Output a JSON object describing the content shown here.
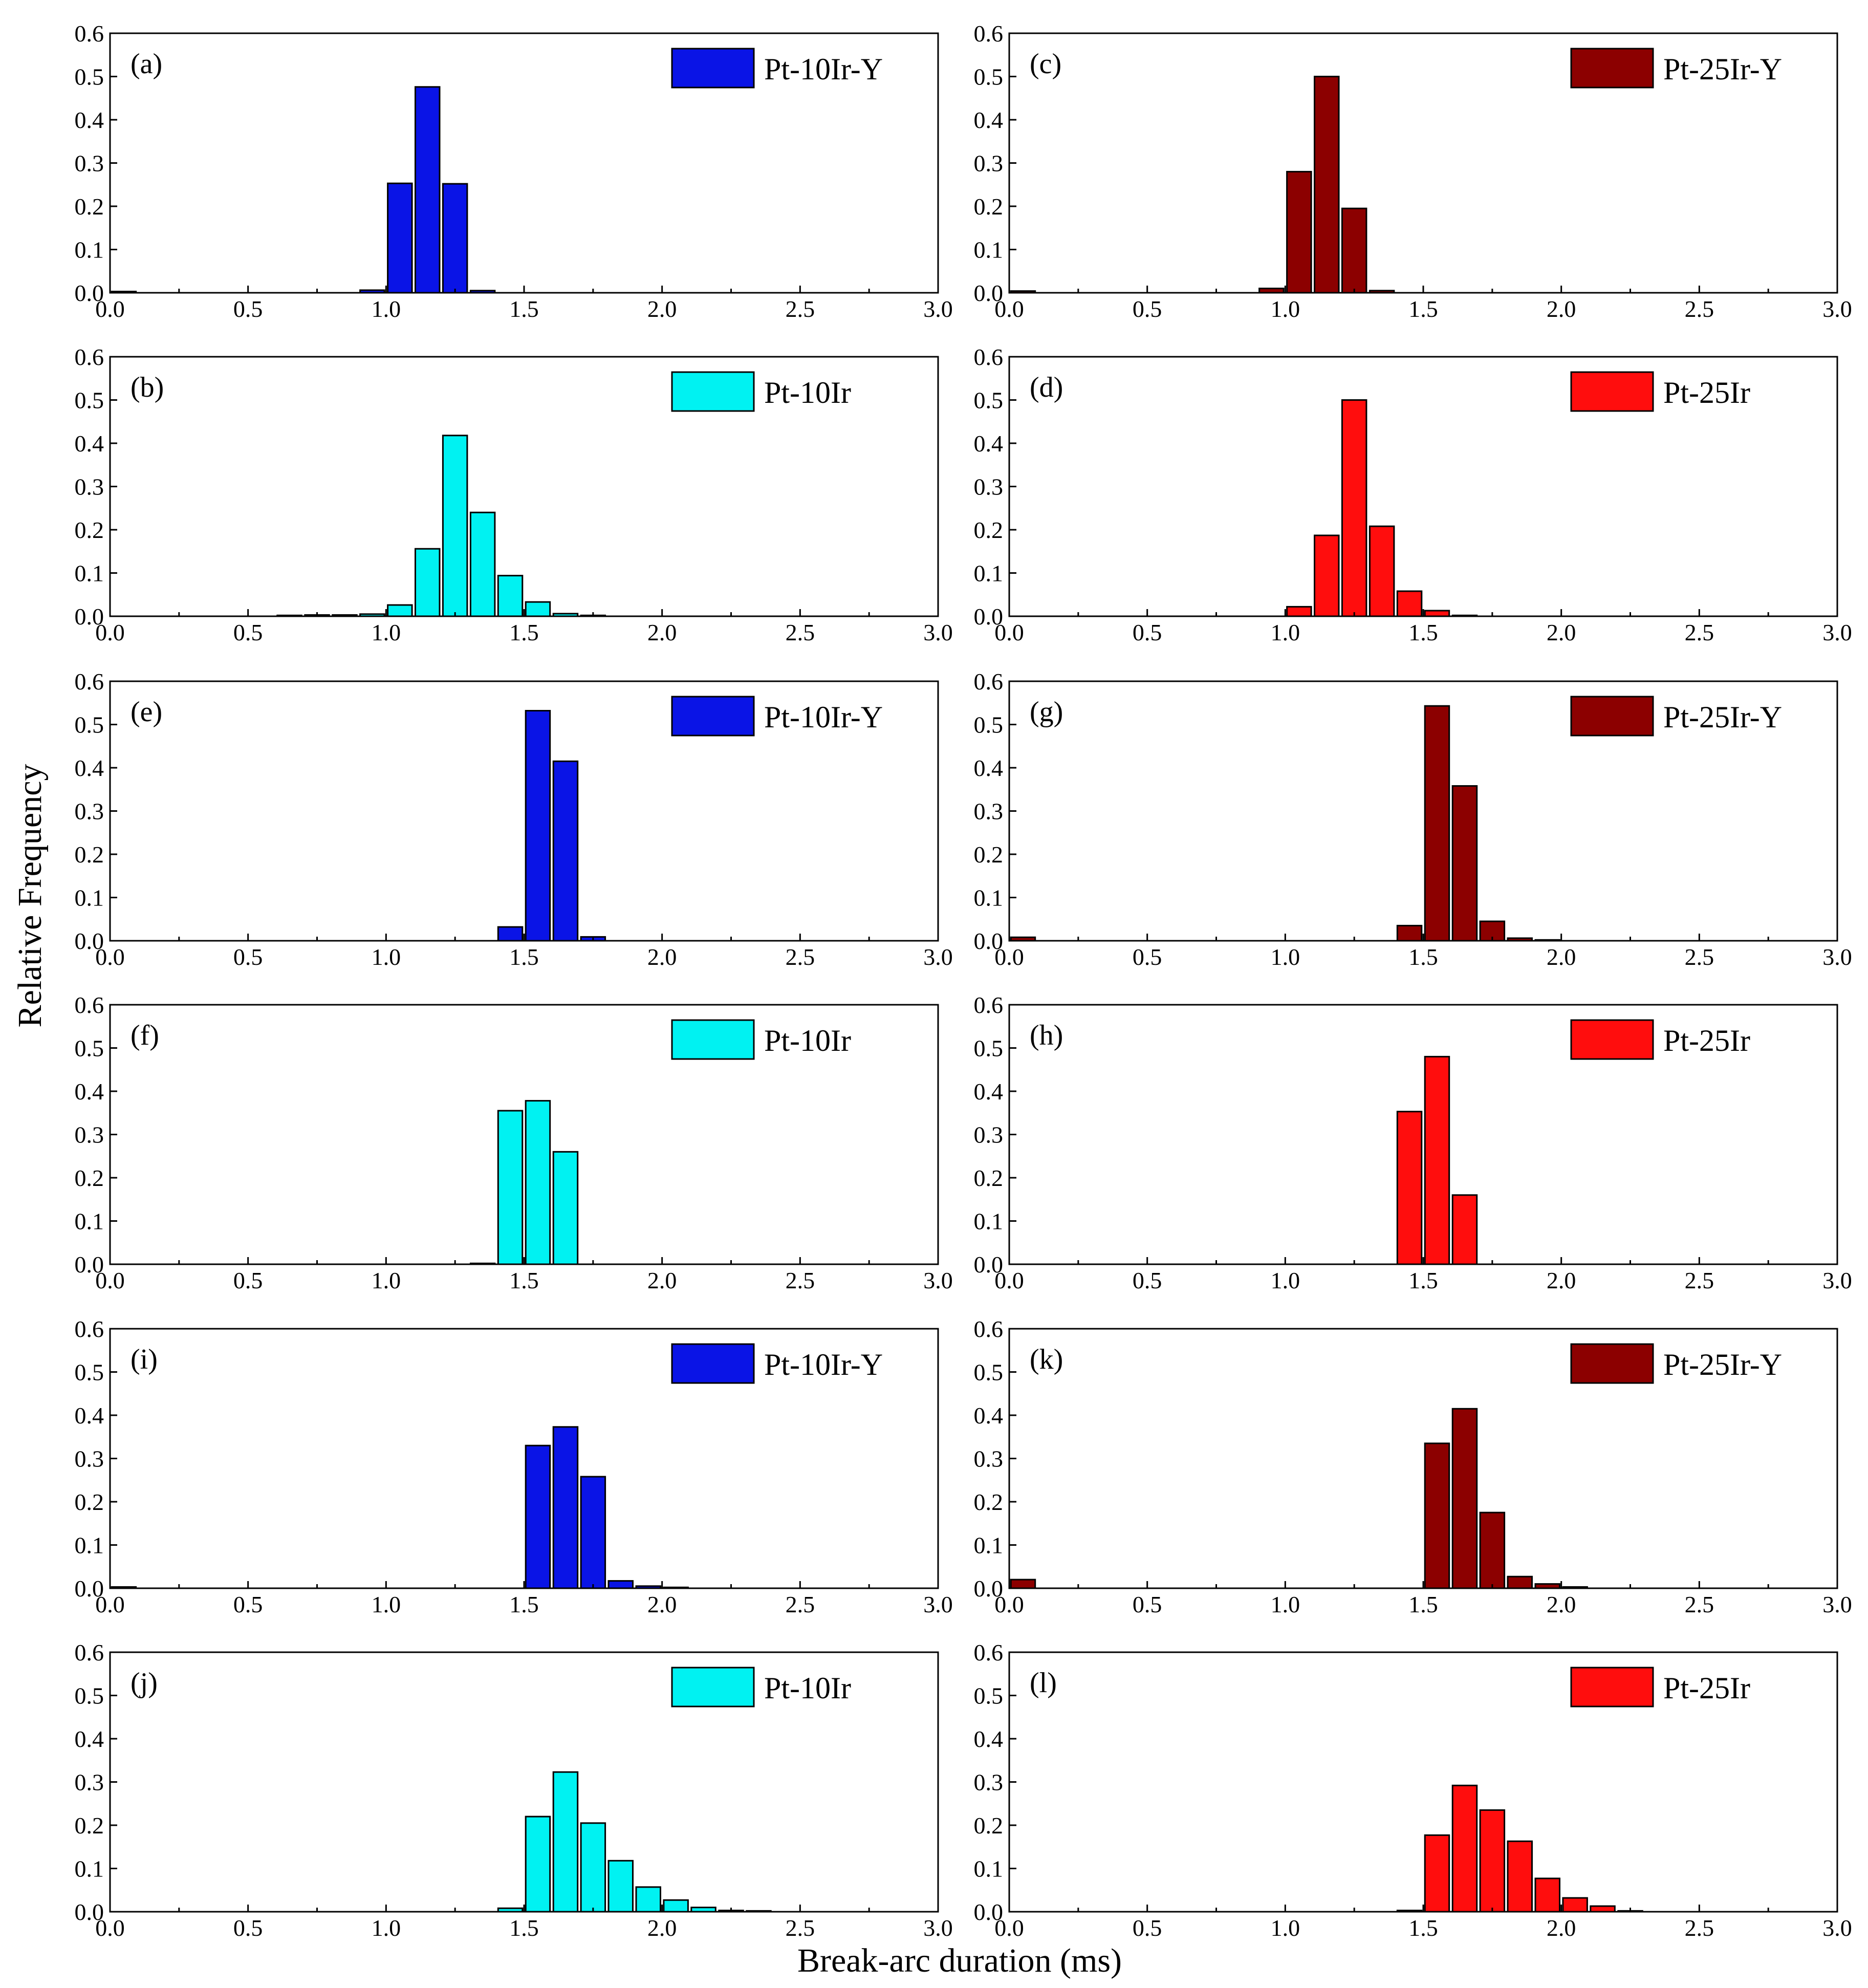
{
  "figure": {
    "ylabel": "Relative Frequency",
    "xlabel": "Break-arc duration (ms)"
  },
  "colors": {
    "pt10ir_y": "#0a14e6",
    "pt10ir": "#00f2f2",
    "pt25ir_y": "#8c0000",
    "pt25ir": "#ff0d0d"
  },
  "chart_data": [
    {
      "type": "bar",
      "id": "a",
      "column": "left",
      "row": 1,
      "panel_label": "(a)",
      "legend": "Pt-10Ir-Y",
      "color_key": "pt10ir_y",
      "xlim": [
        0.0,
        3.0
      ],
      "ylim": [
        0.0,
        0.6
      ],
      "xticks": [
        "0.0",
        "0.5",
        "1.0",
        "1.5",
        "2.0",
        "2.5",
        "3.0"
      ],
      "yticks": [
        "0.0",
        "0.1",
        "0.2",
        "0.3",
        "0.4",
        "0.5",
        "0.6"
      ],
      "bins": [
        {
          "x": 0.0,
          "y": 0.003
        },
        {
          "x": 0.9,
          "y": 0.006
        },
        {
          "x": 1.0,
          "y": 0.253
        },
        {
          "x": 1.1,
          "y": 0.476
        },
        {
          "x": 1.2,
          "y": 0.252
        },
        {
          "x": 1.3,
          "y": 0.005
        }
      ]
    },
    {
      "type": "bar",
      "id": "b",
      "column": "left",
      "row": 2,
      "panel_label": "(b)",
      "legend": "Pt-10Ir",
      "color_key": "pt10ir",
      "xlim": [
        0.0,
        3.0
      ],
      "ylim": [
        0.0,
        0.6
      ],
      "xticks": [
        "0.0",
        "0.5",
        "1.0",
        "1.5",
        "2.0",
        "2.5",
        "3.0"
      ],
      "yticks": [
        "0.0",
        "0.1",
        "0.2",
        "0.3",
        "0.4",
        "0.5",
        "0.6"
      ],
      "bins": [
        {
          "x": 0.6,
          "y": 0.002
        },
        {
          "x": 0.7,
          "y": 0.003
        },
        {
          "x": 0.8,
          "y": 0.003
        },
        {
          "x": 0.9,
          "y": 0.005
        },
        {
          "x": 1.0,
          "y": 0.026
        },
        {
          "x": 1.1,
          "y": 0.156
        },
        {
          "x": 1.2,
          "y": 0.418
        },
        {
          "x": 1.3,
          "y": 0.24
        },
        {
          "x": 1.4,
          "y": 0.094
        },
        {
          "x": 1.5,
          "y": 0.033
        },
        {
          "x": 1.6,
          "y": 0.006
        },
        {
          "x": 1.7,
          "y": 0.002
        }
      ]
    },
    {
      "type": "bar",
      "id": "c",
      "column": "right",
      "row": 1,
      "panel_label": "(c)",
      "legend": "Pt-25Ir-Y",
      "color_key": "pt25ir_y",
      "xlim": [
        0.0,
        3.0
      ],
      "ylim": [
        0.0,
        0.6
      ],
      "xticks": [
        "0.0",
        "0.5",
        "1.0",
        "1.5",
        "2.0",
        "2.5",
        "3.0"
      ],
      "yticks": [
        "0.0",
        "0.1",
        "0.2",
        "0.3",
        "0.4",
        "0.5",
        "0.6"
      ],
      "bins": [
        {
          "x": 0.0,
          "y": 0.004
        },
        {
          "x": 0.9,
          "y": 0.01
        },
        {
          "x": 1.0,
          "y": 0.28
        },
        {
          "x": 1.1,
          "y": 0.5
        },
        {
          "x": 1.2,
          "y": 0.195
        },
        {
          "x": 1.3,
          "y": 0.005
        }
      ]
    },
    {
      "type": "bar",
      "id": "d",
      "column": "right",
      "row": 2,
      "panel_label": "(d)",
      "legend": "Pt-25Ir",
      "color_key": "pt25ir",
      "xlim": [
        0.0,
        3.0
      ],
      "ylim": [
        0.0,
        0.6
      ],
      "xticks": [
        "0.0",
        "0.5",
        "1.0",
        "1.5",
        "2.0",
        "2.5",
        "3.0"
      ],
      "yticks": [
        "0.0",
        "0.1",
        "0.2",
        "0.3",
        "0.4",
        "0.5",
        "0.6"
      ],
      "bins": [
        {
          "x": 1.0,
          "y": 0.022
        },
        {
          "x": 1.1,
          "y": 0.187
        },
        {
          "x": 1.2,
          "y": 0.5
        },
        {
          "x": 1.3,
          "y": 0.208
        },
        {
          "x": 1.4,
          "y": 0.058
        },
        {
          "x": 1.5,
          "y": 0.013
        },
        {
          "x": 1.6,
          "y": 0.002
        }
      ]
    },
    {
      "type": "bar",
      "id": "e",
      "column": "left",
      "row": 3,
      "panel_label": "(e)",
      "legend": "Pt-10Ir-Y",
      "color_key": "pt10ir_y",
      "xlim": [
        0.0,
        3.0
      ],
      "ylim": [
        0.0,
        0.6
      ],
      "xticks": [
        "0.0",
        "0.5",
        "1.0",
        "1.5",
        "2.0",
        "2.5",
        "3.0"
      ],
      "yticks": [
        "0.0",
        "0.1",
        "0.2",
        "0.3",
        "0.4",
        "0.5",
        "0.6"
      ],
      "bins": [
        {
          "x": 1.4,
          "y": 0.032
        },
        {
          "x": 1.5,
          "y": 0.532
        },
        {
          "x": 1.6,
          "y": 0.415
        },
        {
          "x": 1.7,
          "y": 0.009
        }
      ]
    },
    {
      "type": "bar",
      "id": "f",
      "column": "left",
      "row": 4,
      "panel_label": "(f)",
      "legend": "Pt-10Ir",
      "color_key": "pt10ir",
      "xlim": [
        0.0,
        3.0
      ],
      "ylim": [
        0.0,
        0.6
      ],
      "xticks": [
        "0.0",
        "0.5",
        "1.0",
        "1.5",
        "2.0",
        "2.5",
        "3.0"
      ],
      "yticks": [
        "0.0",
        "0.1",
        "0.2",
        "0.3",
        "0.4",
        "0.5",
        "0.6"
      ],
      "bins": [
        {
          "x": 1.3,
          "y": 0.002
        },
        {
          "x": 1.4,
          "y": 0.355
        },
        {
          "x": 1.5,
          "y": 0.378
        },
        {
          "x": 1.6,
          "y": 0.26
        }
      ]
    },
    {
      "type": "bar",
      "id": "g",
      "column": "right",
      "row": 3,
      "panel_label": "(g)",
      "legend": "Pt-25Ir-Y",
      "color_key": "pt25ir_y",
      "xlim": [
        0.0,
        3.0
      ],
      "ylim": [
        0.0,
        0.6
      ],
      "xticks": [
        "0.0",
        "0.5",
        "1.0",
        "1.5",
        "2.0",
        "2.5",
        "3.0"
      ],
      "yticks": [
        "0.0",
        "0.1",
        "0.2",
        "0.3",
        "0.4",
        "0.5",
        "0.6"
      ],
      "bins": [
        {
          "x": 0.0,
          "y": 0.008
        },
        {
          "x": 1.4,
          "y": 0.035
        },
        {
          "x": 1.5,
          "y": 0.543
        },
        {
          "x": 1.6,
          "y": 0.358
        },
        {
          "x": 1.7,
          "y": 0.045
        },
        {
          "x": 1.8,
          "y": 0.006
        },
        {
          "x": 1.9,
          "y": 0.002
        }
      ]
    },
    {
      "type": "bar",
      "id": "h",
      "column": "right",
      "row": 4,
      "panel_label": "(h)",
      "legend": "Pt-25Ir",
      "color_key": "pt25ir",
      "xlim": [
        0.0,
        3.0
      ],
      "ylim": [
        0.0,
        0.6
      ],
      "xticks": [
        "0.0",
        "0.5",
        "1.0",
        "1.5",
        "2.0",
        "2.5",
        "3.0"
      ],
      "yticks": [
        "0.0",
        "0.1",
        "0.2",
        "0.3",
        "0.4",
        "0.5",
        "0.6"
      ],
      "bins": [
        {
          "x": 1.4,
          "y": 0.353
        },
        {
          "x": 1.5,
          "y": 0.48
        },
        {
          "x": 1.6,
          "y": 0.16
        }
      ]
    },
    {
      "type": "bar",
      "id": "i",
      "column": "left",
      "row": 5,
      "panel_label": "(i)",
      "legend": "Pt-10Ir-Y",
      "color_key": "pt10ir_y",
      "xlim": [
        0.0,
        3.0
      ],
      "ylim": [
        0.0,
        0.6
      ],
      "xticks": [
        "0.0",
        "0.5",
        "1.0",
        "1.5",
        "2.0",
        "2.5",
        "3.0"
      ],
      "yticks": [
        "0.0",
        "0.1",
        "0.2",
        "0.3",
        "0.4",
        "0.5",
        "0.6"
      ],
      "bins": [
        {
          "x": 0.0,
          "y": 0.003
        },
        {
          "x": 1.5,
          "y": 0.33
        },
        {
          "x": 1.6,
          "y": 0.373
        },
        {
          "x": 1.7,
          "y": 0.258
        },
        {
          "x": 1.8,
          "y": 0.017
        },
        {
          "x": 1.9,
          "y": 0.005
        },
        {
          "x": 2.0,
          "y": 0.002
        }
      ]
    },
    {
      "type": "bar",
      "id": "j",
      "column": "left",
      "row": 6,
      "panel_label": "(j)",
      "legend": "Pt-10Ir",
      "color_key": "pt10ir",
      "xlim": [
        0.0,
        3.0
      ],
      "ylim": [
        0.0,
        0.6
      ],
      "xticks": [
        "0.0",
        "0.5",
        "1.0",
        "1.5",
        "2.0",
        "2.5",
        "3.0"
      ],
      "yticks": [
        "0.0",
        "0.1",
        "0.2",
        "0.3",
        "0.4",
        "0.5",
        "0.6"
      ],
      "bins": [
        {
          "x": 1.4,
          "y": 0.008
        },
        {
          "x": 1.5,
          "y": 0.22
        },
        {
          "x": 1.6,
          "y": 0.323
        },
        {
          "x": 1.7,
          "y": 0.205
        },
        {
          "x": 1.8,
          "y": 0.118
        },
        {
          "x": 1.9,
          "y": 0.057
        },
        {
          "x": 2.0,
          "y": 0.027
        },
        {
          "x": 2.1,
          "y": 0.01
        },
        {
          "x": 2.2,
          "y": 0.003
        },
        {
          "x": 2.3,
          "y": 0.002
        }
      ]
    },
    {
      "type": "bar",
      "id": "k",
      "column": "right",
      "row": 5,
      "panel_label": "(k)",
      "legend": "Pt-25Ir-Y",
      "color_key": "pt25ir_y",
      "xlim": [
        0.0,
        3.0
      ],
      "ylim": [
        0.0,
        0.6
      ],
      "xticks": [
        "0.0",
        "0.5",
        "1.0",
        "1.5",
        "2.0",
        "2.5",
        "3.0"
      ],
      "yticks": [
        "0.0",
        "0.1",
        "0.2",
        "0.3",
        "0.4",
        "0.5",
        "0.6"
      ],
      "bins": [
        {
          "x": 0.0,
          "y": 0.02
        },
        {
          "x": 1.5,
          "y": 0.335
        },
        {
          "x": 1.6,
          "y": 0.415
        },
        {
          "x": 1.7,
          "y": 0.175
        },
        {
          "x": 1.8,
          "y": 0.027
        },
        {
          "x": 1.9,
          "y": 0.01
        },
        {
          "x": 2.0,
          "y": 0.003
        }
      ]
    },
    {
      "type": "bar",
      "id": "l",
      "column": "right",
      "row": 6,
      "panel_label": "(l)",
      "legend": "Pt-25Ir",
      "color_key": "pt25ir",
      "xlim": [
        0.0,
        3.0
      ],
      "ylim": [
        0.0,
        0.6
      ],
      "xticks": [
        "0.0",
        "0.5",
        "1.0",
        "1.5",
        "2.0",
        "2.5",
        "3.0"
      ],
      "yticks": [
        "0.0",
        "0.1",
        "0.2",
        "0.3",
        "0.4",
        "0.5",
        "0.6"
      ],
      "bins": [
        {
          "x": 1.4,
          "y": 0.003
        },
        {
          "x": 1.5,
          "y": 0.177
        },
        {
          "x": 1.6,
          "y": 0.292
        },
        {
          "x": 1.7,
          "y": 0.235
        },
        {
          "x": 1.8,
          "y": 0.163
        },
        {
          "x": 1.9,
          "y": 0.077
        },
        {
          "x": 2.0,
          "y": 0.032
        },
        {
          "x": 2.1,
          "y": 0.013
        },
        {
          "x": 2.2,
          "y": 0.002
        }
      ]
    }
  ]
}
